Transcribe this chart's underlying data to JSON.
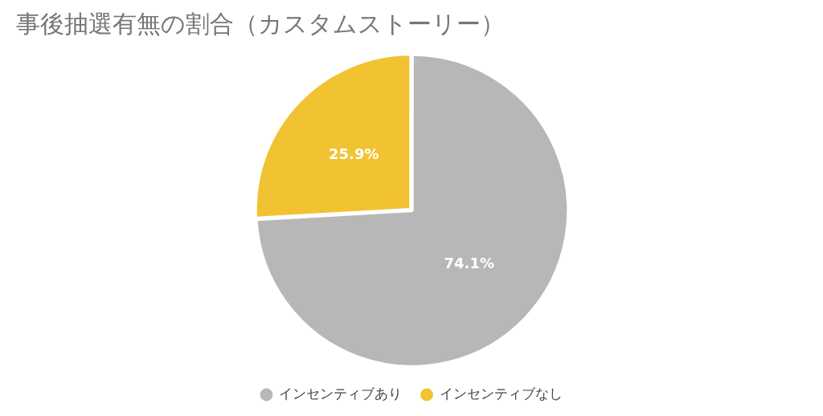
{
  "chart_data": {
    "type": "pie",
    "title": "事後抽選有無の割合（カスタムストーリー）",
    "categories": [
      "インセンティブあり",
      "インセンティブなし"
    ],
    "values": [
      74.1,
      25.9
    ],
    "colors": [
      "#b7b7b7",
      "#f1c232"
    ],
    "value_labels": [
      "74.1%",
      "25.9%"
    ],
    "legend": "bottom"
  }
}
